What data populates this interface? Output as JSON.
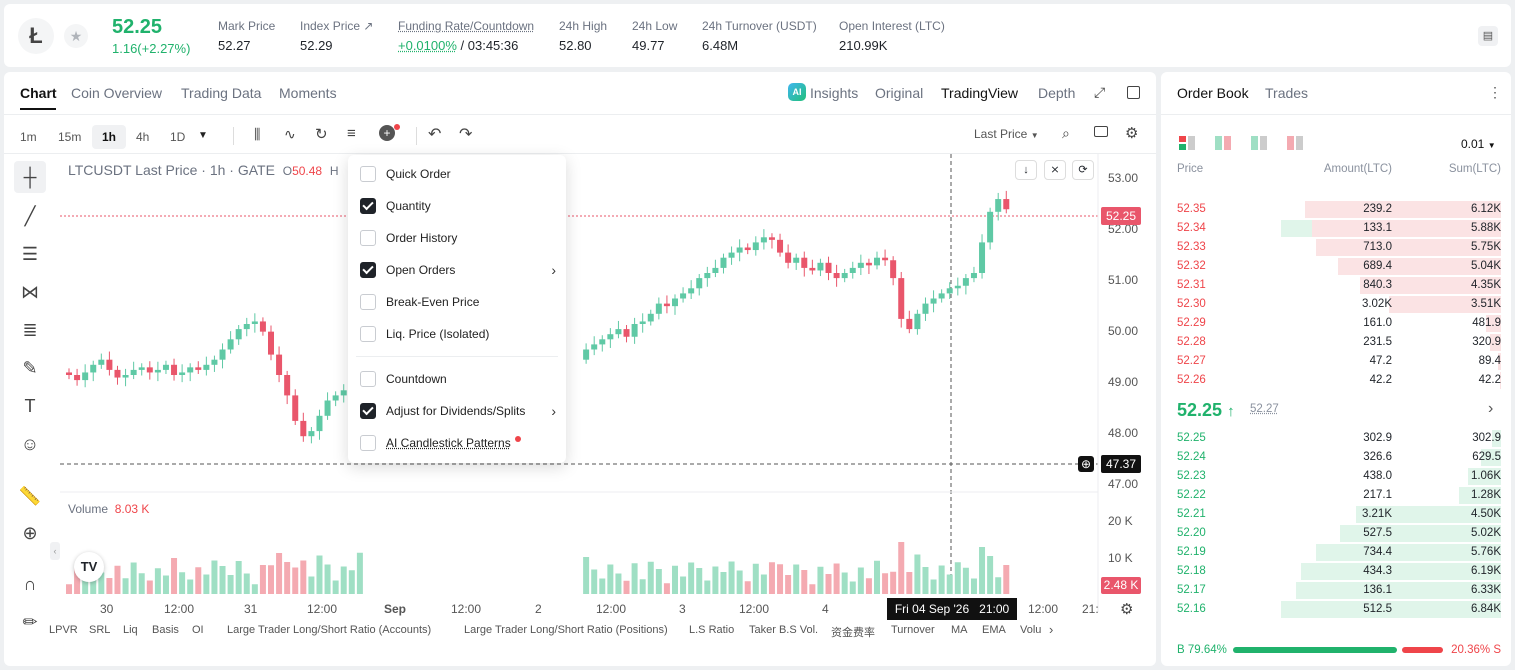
{
  "ticker": {
    "logo": "Ł",
    "price": "52.25",
    "change": "1.16(+2.27%)",
    "stats": [
      {
        "label": "Mark Price",
        "value": "52.27"
      },
      {
        "label": "Index Price ↗",
        "value": "52.29"
      },
      {
        "label": "Funding Rate/Countdown",
        "value_green": "+0.0100%",
        "value": " / 03:45:36"
      },
      {
        "label": "24h High",
        "value": "52.80"
      },
      {
        "label": "24h Low",
        "value": "49.77"
      },
      {
        "label": "24h Turnover (USDT)",
        "value": "6.48M"
      },
      {
        "label": "Open Interest (LTC)",
        "value": "210.99K"
      }
    ]
  },
  "chart_tabs": [
    "Chart",
    "Coin Overview",
    "Trading Data",
    "Moments"
  ],
  "view_tabs": {
    "insights": "Insights",
    "original": "Original",
    "tradingview": "TradingView",
    "depth": "Depth",
    "ai_badge": "AI"
  },
  "timeframes": [
    "1m",
    "15m",
    "1h",
    "4h",
    "1D"
  ],
  "last_price_select": "Last Price",
  "legend": {
    "symbol": "LTCUSDT Last Price · 1h · GATE",
    "o_label": "O",
    "o_value": "50.48",
    "h_label": "H"
  },
  "menu": [
    {
      "label": "Quick Order",
      "checked": false
    },
    {
      "label": "Quantity",
      "checked": true
    },
    {
      "label": "Order History",
      "checked": false
    },
    {
      "label": "Open Orders",
      "checked": true,
      "submenu": true
    },
    {
      "label": "Break-Even Price",
      "checked": false
    },
    {
      "label": "Liq. Price (Isolated)",
      "checked": false
    },
    {
      "label": "Countdown",
      "checked": false
    },
    {
      "label": "Adjust for Dividends/Splits",
      "checked": true,
      "submenu": true
    },
    {
      "label": "AI Candlestick Patterns",
      "checked": false
    }
  ],
  "price_axis": [
    "53.00",
    "52.00",
    "51.00",
    "50.00",
    "49.00",
    "48.00",
    "47.00"
  ],
  "last_price_tag": "52.25",
  "crosshair_price": "47.37",
  "volume": {
    "label": "Volume",
    "value": "8.03 K",
    "axis": [
      "20 K",
      "10 K"
    ],
    "tag": "2.48 K"
  },
  "time_axis": [
    "30",
    "12:00",
    "31",
    "12:00",
    "Sep",
    "12:00",
    "2",
    "12:00",
    "3",
    "12:00",
    "4",
    "12:00",
    "21:"
  ],
  "crosshair_time": "Fri 04 Sep '26   21:00",
  "indicators": [
    "LPVR",
    "SRL",
    "Liq",
    "Basis",
    "OI",
    "Large Trader Long/Short Ratio (Accounts)",
    "Large Trader Long/Short Ratio (Positions)",
    "L.S Ratio",
    "Taker B.S Vol.",
    "资金费率",
    "Turnover",
    "MA",
    "EMA",
    "Volu"
  ],
  "orderbook": {
    "tabs": [
      "Order Book",
      "Trades"
    ],
    "precision": "0.01",
    "headers": [
      "Price",
      "Amount(LTC)",
      "Sum(LTC)"
    ],
    "asks": [
      [
        "52.35",
        "239.2",
        "6.12K"
      ],
      [
        "52.34",
        "133.1",
        "5.88K"
      ],
      [
        "52.33",
        "713.0",
        "5.75K"
      ],
      [
        "52.32",
        "689.4",
        "5.04K"
      ],
      [
        "52.31",
        "840.3",
        "4.35K"
      ],
      [
        "52.30",
        "3.02K",
        "3.51K"
      ],
      [
        "52.29",
        "161.0",
        "481.9"
      ],
      [
        "52.28",
        "231.5",
        "320.9"
      ],
      [
        "52.27",
        "47.2",
        "89.4"
      ],
      [
        "52.26",
        "42.2",
        "42.2"
      ]
    ],
    "mid_price": "52.25",
    "mid_arrow": "↑",
    "mark": "52.27",
    "bids": [
      [
        "52.25",
        "302.9",
        "302.9"
      ],
      [
        "52.24",
        "326.6",
        "629.5"
      ],
      [
        "52.23",
        "438.0",
        "1.06K"
      ],
      [
        "52.22",
        "217.1",
        "1.28K"
      ],
      [
        "52.21",
        "3.21K",
        "4.50K"
      ],
      [
        "52.20",
        "527.5",
        "5.02K"
      ],
      [
        "52.19",
        "734.4",
        "5.76K"
      ],
      [
        "52.18",
        "434.3",
        "6.19K"
      ],
      [
        "52.17",
        "136.1",
        "6.33K"
      ],
      [
        "52.16",
        "512.5",
        "6.84K"
      ]
    ],
    "ask_fill": [
      0.89,
      0.86,
      0.84,
      0.74,
      0.64,
      0.51,
      0.07,
      0.05,
      0.013,
      0.006
    ],
    "bid_fill": [
      0.04,
      0.09,
      0.15,
      0.19,
      0.66,
      0.73,
      0.84,
      0.91,
      0.93,
      1.0
    ],
    "buy_ratio": "B 79.64%",
    "sell_ratio": "20.36% S",
    "buy_pct": 79.64
  },
  "colors": {
    "up": "#20b26c",
    "down": "#ef454a",
    "up_candle": "#5fc9a5",
    "down_candle": "#e9566b"
  }
}
